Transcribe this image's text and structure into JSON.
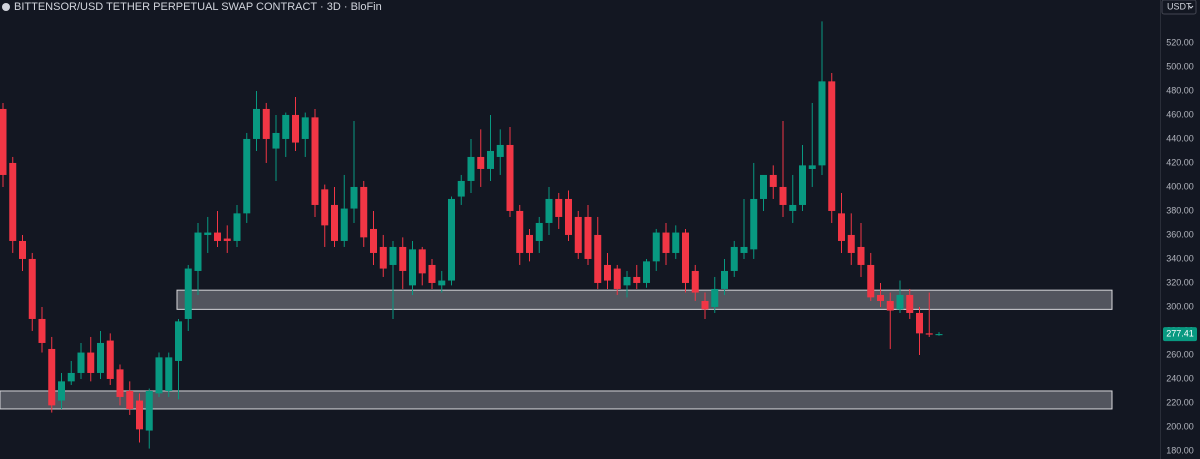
{
  "chart_data": {
    "type": "candlestick",
    "title": "BITTENSOR/USD TETHER PERPETUAL SWAP CONTRACT · 3D · BloFin",
    "currency": "USDT",
    "up_color": "#089981",
    "down_color": "#f23645",
    "grid": false,
    "ylim": [
      173.3,
      555.8
    ],
    "yticks": [
      {
        "value": 180,
        "label": "180.00"
      },
      {
        "value": 200,
        "label": "200.00"
      },
      {
        "value": 220,
        "label": "220.00"
      },
      {
        "value": 240,
        "label": "240.00"
      },
      {
        "value": 260,
        "label": "260.00"
      },
      {
        "value": 280,
        "label": "280.00"
      },
      {
        "value": 300,
        "label": "300.00"
      },
      {
        "value": 320,
        "label": "320.00"
      },
      {
        "value": 340,
        "label": "340.00"
      },
      {
        "value": 360,
        "label": "360.00"
      },
      {
        "value": 380,
        "label": "380.00"
      },
      {
        "value": 400,
        "label": "400.00"
      },
      {
        "value": 420,
        "label": "420.00"
      },
      {
        "value": 440,
        "label": "440.00"
      },
      {
        "value": 460,
        "label": "460.00"
      },
      {
        "value": 480,
        "label": "480.00"
      },
      {
        "value": 500,
        "label": "500.00"
      },
      {
        "value": 520,
        "label": "520.00"
      }
    ],
    "zones": [
      {
        "low": 298,
        "high": 314
      },
      {
        "low": 215,
        "high": 230
      }
    ],
    "open": [
      465,
      420,
      355,
      340,
      290,
      265,
      222,
      238,
      245,
      262,
      245,
      272,
      248,
      230,
      222,
      197,
      228,
      230,
      255,
      290,
      330,
      360,
      362,
      357,
      355,
      378,
      440,
      465,
      432,
      440,
      460,
      440,
      458,
      398,
      385,
      355,
      382,
      400,
      365,
      350,
      335,
      350,
      318,
      348,
      335,
      318,
      322,
      392,
      405,
      425,
      415,
      425,
      435,
      380,
      360,
      355,
      370,
      390,
      390,
      375,
      375,
      360,
      335,
      332,
      318,
      325,
      320,
      338,
      362,
      345,
      362,
      330,
      305,
      300,
      315,
      330,
      345,
      348,
      390,
      410,
      400,
      380,
      385,
      415,
      418,
      488,
      378,
      360,
      350,
      335,
      310,
      305,
      298,
      310,
      295,
      278,
      276.5
    ],
    "high": [
      470,
      425,
      360,
      345,
      300,
      275,
      245,
      255,
      270,
      275,
      280,
      278,
      252,
      238,
      228,
      232,
      262,
      262,
      290,
      335,
      370,
      375,
      380,
      368,
      385,
      445,
      480,
      470,
      460,
      462,
      475,
      462,
      465,
      402,
      400,
      410,
      455,
      405,
      380,
      360,
      355,
      358,
      355,
      350,
      340,
      330,
      392,
      410,
      440,
      448,
      460,
      448,
      450,
      385,
      365,
      375,
      400,
      395,
      397,
      380,
      385,
      375,
      345,
      335,
      330,
      335,
      340,
      365,
      370,
      368,
      365,
      335,
      312,
      325,
      340,
      355,
      390,
      420,
      410,
      418,
      455,
      410,
      435,
      470,
      538,
      495,
      395,
      378,
      370,
      345,
      320,
      312,
      322,
      315,
      300,
      312,
      279
    ],
    "low": [
      400,
      345,
      330,
      280,
      262,
      212,
      215,
      235,
      240,
      238,
      240,
      235,
      218,
      210,
      187,
      182,
      225,
      225,
      223,
      280,
      310,
      345,
      350,
      345,
      350,
      370,
      430,
      420,
      405,
      425,
      430,
      425,
      375,
      350,
      350,
      350,
      370,
      350,
      335,
      325,
      290,
      315,
      310,
      318,
      315,
      312,
      318,
      385,
      395,
      400,
      405,
      410,
      375,
      335,
      338,
      345,
      360,
      365,
      355,
      340,
      335,
      315,
      315,
      310,
      308,
      315,
      316,
      330,
      335,
      340,
      312,
      305,
      290,
      295,
      310,
      325,
      340,
      340,
      380,
      390,
      375,
      370,
      380,
      400,
      410,
      370,
      345,
      335,
      325,
      305,
      300,
      265,
      295,
      290,
      260,
      275,
      276
    ],
    "close": [
      410,
      355,
      340,
      290,
      270,
      218,
      238,
      245,
      262,
      245,
      270,
      240,
      225,
      215,
      198,
      230,
      258,
      258,
      288,
      332,
      362,
      362,
      355,
      355,
      378,
      440,
      465,
      440,
      445,
      460,
      437,
      458,
      385,
      368,
      355,
      382,
      400,
      358,
      345,
      332,
      350,
      330,
      348,
      328,
      320,
      322,
      390,
      405,
      425,
      415,
      430,
      435,
      380,
      345,
      345,
      370,
      390,
      375,
      360,
      345,
      340,
      320,
      322,
      315,
      325,
      320,
      338,
      362,
      345,
      362,
      320,
      312,
      298,
      315,
      330,
      350,
      350,
      390,
      410,
      400,
      385,
      385,
      418,
      418,
      488,
      380,
      355,
      345,
      335,
      308,
      305,
      297,
      310,
      295,
      278,
      277,
      277.41
    ]
  }
}
